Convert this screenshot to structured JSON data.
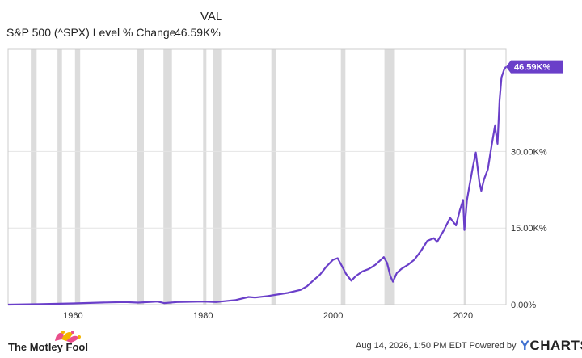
{
  "chart_data": {
    "type": "line",
    "legend": {
      "column_header": "VAL",
      "series_label": "S&P 500 (^SPX) Level % Change",
      "series_value": "46.59K%"
    },
    "x_label": "",
    "y_label": "",
    "x_range": [
      1950,
      2026.6
    ],
    "y_range": [
      0,
      50000
    ],
    "x_ticks": [
      {
        "value": 1960,
        "label": "1960"
      },
      {
        "value": 1980,
        "label": "1980"
      },
      {
        "value": 2000,
        "label": "2000"
      },
      {
        "value": 2020,
        "label": "2020"
      }
    ],
    "y_ticks": [
      {
        "value": 0,
        "label": "0.00%"
      },
      {
        "value": 15000,
        "label": "15.00K%"
      },
      {
        "value": 30000,
        "label": "30.00K%"
      }
    ],
    "y_axis_position": "right",
    "grid": "horizontal",
    "last_value_label": "46.59K%",
    "recession_bands": [
      [
        1953.5,
        1954.4
      ],
      [
        1957.6,
        1958.3
      ],
      [
        1960.3,
        1961.1
      ],
      [
        1969.9,
        1970.9
      ],
      [
        1973.9,
        1975.2
      ],
      [
        1980.0,
        1980.5
      ],
      [
        1981.5,
        1982.9
      ],
      [
        1990.5,
        1991.2
      ],
      [
        2001.2,
        2001.9
      ],
      [
        2007.9,
        2009.5
      ],
      [
        2020.1,
        2020.4
      ]
    ],
    "series": [
      {
        "color": "#6a3fc9",
        "points": [
          [
            1950,
            0
          ],
          [
            1955,
            100
          ],
          [
            1960,
            230
          ],
          [
            1965,
            420
          ],
          [
            1968,
            500
          ],
          [
            1970,
            400
          ],
          [
            1973,
            600
          ],
          [
            1974,
            300
          ],
          [
            1976,
            500
          ],
          [
            1980,
            600
          ],
          [
            1982,
            500
          ],
          [
            1985,
            900
          ],
          [
            1987,
            1500
          ],
          [
            1988,
            1400
          ],
          [
            1990,
            1700
          ],
          [
            1991,
            1900
          ],
          [
            1993,
            2300
          ],
          [
            1995,
            2900
          ],
          [
            1996,
            3600
          ],
          [
            1997,
            4800
          ],
          [
            1998,
            5900
          ],
          [
            1999,
            7500
          ],
          [
            2000,
            8800
          ],
          [
            2000.7,
            9100
          ],
          [
            2001.5,
            7200
          ],
          [
            2002,
            6000
          ],
          [
            2002.8,
            4700
          ],
          [
            2003.5,
            5600
          ],
          [
            2004.5,
            6500
          ],
          [
            2005.5,
            7000
          ],
          [
            2006.5,
            7800
          ],
          [
            2007.8,
            9300
          ],
          [
            2008.3,
            8200
          ],
          [
            2008.8,
            5600
          ],
          [
            2009.2,
            4500
          ],
          [
            2009.8,
            6200
          ],
          [
            2010.5,
            7000
          ],
          [
            2011.5,
            7800
          ],
          [
            2012.5,
            8800
          ],
          [
            2013.5,
            10500
          ],
          [
            2014.5,
            12500
          ],
          [
            2015.5,
            13000
          ],
          [
            2016,
            12300
          ],
          [
            2017,
            14500
          ],
          [
            2018,
            17000
          ],
          [
            2018.9,
            15500
          ],
          [
            2019.5,
            18500
          ],
          [
            2020,
            20500
          ],
          [
            2020.2,
            14600
          ],
          [
            2020.6,
            20500
          ],
          [
            2021,
            23500
          ],
          [
            2021.5,
            27000
          ],
          [
            2021.95,
            29800
          ],
          [
            2022.5,
            24000
          ],
          [
            2022.8,
            22300
          ],
          [
            2023.2,
            24500
          ],
          [
            2023.8,
            26500
          ],
          [
            2024.3,
            30500
          ],
          [
            2024.9,
            35000
          ],
          [
            2025.3,
            31500
          ],
          [
            2025.6,
            40000
          ],
          [
            2025.9,
            44500
          ],
          [
            2026.3,
            46000
          ],
          [
            2026.6,
            46590
          ]
        ]
      }
    ]
  },
  "footer": {
    "brand_left": "The Motley Fool",
    "timestamp": "Aug 14, 2026, 1:50 PM EDT",
    "powered_by": "Powered by",
    "brand_right": "YCHARTS"
  },
  "colors": {
    "line": "#6a3fc9",
    "label_bg": "#6a3fc9",
    "recession": "#dcdcdc",
    "grid": "#e4e4e4",
    "axis": "#cccccc"
  }
}
